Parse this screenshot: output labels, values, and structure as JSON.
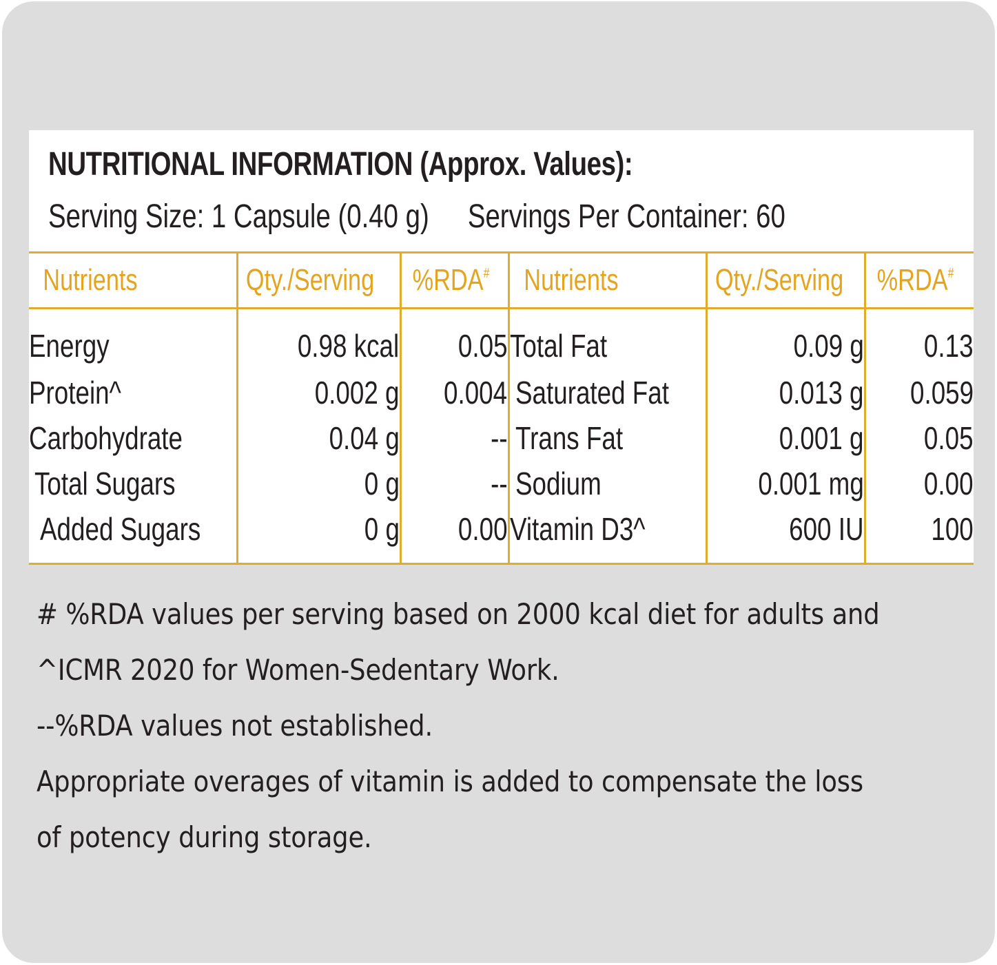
{
  "title": "NUTRITIONAL INFORMATION (Approx. Values):",
  "serving_size": "Serving Size: 1 Capsule (0.40 g)",
  "servings_per_container": "Servings Per Container: 60",
  "colors": {
    "accent": "#e3a520",
    "card_bg": "#dddddd",
    "panel_bg": "#ffffff",
    "text": "#231f20"
  },
  "table": {
    "headers": {
      "nutrients": "Nutrients",
      "qty": "Qty./Serving",
      "rda": "%RDA",
      "rda_mark": "#"
    },
    "left": [
      {
        "name": "Energy",
        "qty": "0.98 kcal",
        "rda": "0.05"
      },
      {
        "name": "Protein^",
        "qty": "0.002 g",
        "rda": "0.004"
      },
      {
        "name": "Carbohydrate",
        "qty": "0.04 g",
        "rda": "--"
      },
      {
        "name": "Total Sugars",
        "qty": "0 g",
        "rda": "--"
      },
      {
        "name": "Added Sugars",
        "qty": "0 g",
        "rda": "0.00"
      }
    ],
    "right": [
      {
        "name": "Total Fat",
        "qty": "0.09 g",
        "rda": "0.13"
      },
      {
        "name": "Saturated Fat",
        "qty": "0.013 g",
        "rda": "0.059"
      },
      {
        "name": "Trans Fat",
        "qty": "0.001 g",
        "rda": "0.05"
      },
      {
        "name": "Sodium",
        "qty": "0.001 mg",
        "rda": "0.00"
      },
      {
        "name": "Vitamin D3^",
        "qty": "600 IU",
        "rda": "100"
      }
    ]
  },
  "footnotes": [
    "# %RDA values per serving based on 2000 kcal diet for adults and",
    "^ICMR 2020 for Women-Sedentary Work.",
    "--%RDA values not established.",
    "Appropriate overages of vitamin is added to compensate the loss",
    "of potency during storage."
  ]
}
